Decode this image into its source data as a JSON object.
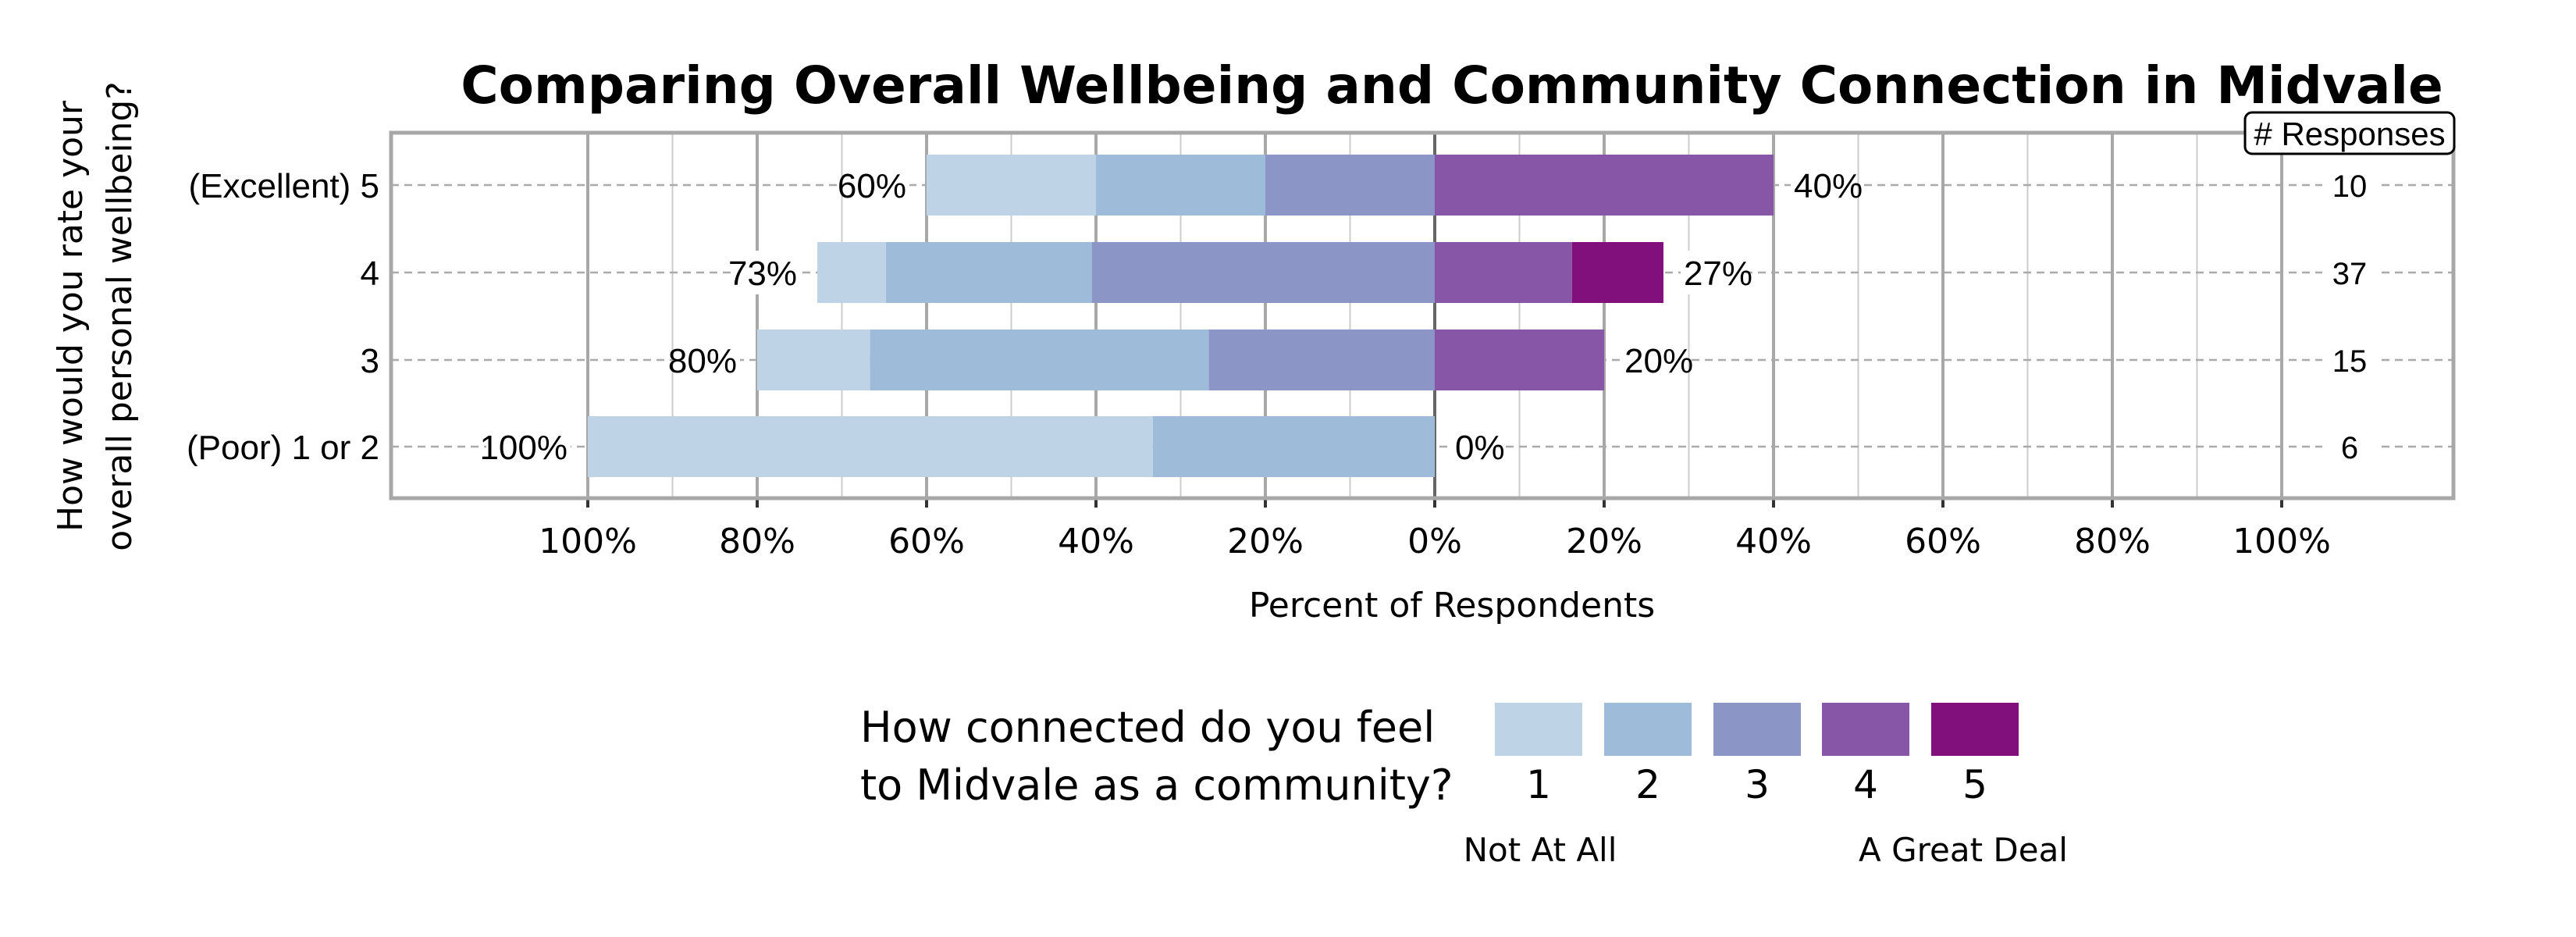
{
  "chart_data": {
    "type": "bar",
    "orientation": "horizontal",
    "stacked": "diverging",
    "title": "Comparing Overall Wellbeing and Community Connection in Midvale",
    "ylabel_lines": [
      "How would you rate your",
      "overall personal wellbeing?"
    ],
    "xlabel": "Percent of Respondents",
    "xlim": [
      -100,
      100
    ],
    "x_ticks": [
      "100%",
      "80%",
      "60%",
      "40%",
      "20%",
      "0%",
      "20%",
      "40%",
      "60%",
      "80%",
      "100%"
    ],
    "grid": true,
    "categories": [
      "(Excellent) 5",
      "4",
      "3",
      "(Poor) 1 or 2"
    ],
    "responses_header": "# Responses",
    "responses": [
      "10",
      "37",
      "15",
      "6"
    ],
    "left_labels": [
      "60%",
      "73%",
      "80%",
      "100%"
    ],
    "right_labels": [
      "40%",
      "27%",
      "20%",
      "0%"
    ],
    "series": [
      {
        "name": "1",
        "color": "#bfd3e6",
        "values": [
          20,
          8.1,
          13.3,
          66.7
        ]
      },
      {
        "name": "2",
        "color": "#9ebbd9",
        "values": [
          20,
          24.3,
          40,
          33.3
        ]
      },
      {
        "name": "3",
        "color": "#8c96c6",
        "values": [
          20,
          40.5,
          26.7,
          0
        ]
      },
      {
        "name": "4",
        "color": "#8856a7",
        "values": [
          40,
          16.2,
          20,
          0
        ]
      },
      {
        "name": "5",
        "color": "#810f7c",
        "values": [
          0,
          10.8,
          0,
          0
        ]
      }
    ],
    "legend": {
      "title_lines": [
        "How connected do you feel",
        "to Midvale as a community?"
      ],
      "low_label": "Not At All",
      "high_label": "A Great Deal",
      "placement": "bottom"
    }
  }
}
